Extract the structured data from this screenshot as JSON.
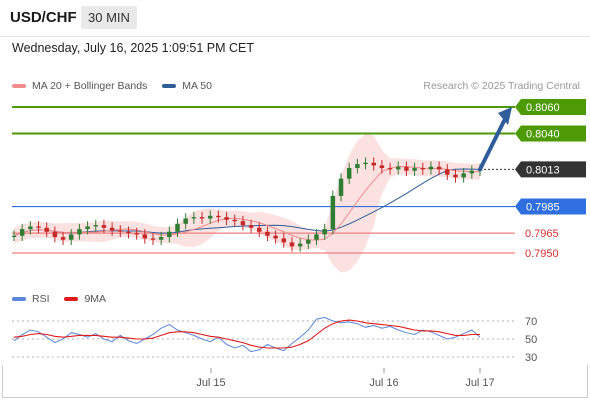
{
  "header": {
    "symbol": "USD/CHF",
    "timeframe": "30 MIN"
  },
  "timestamp": "Wednesday, July 16, 2025 1:09:51 PM CET",
  "legend": [
    {
      "label": "MA 20 + Bollinger Bands",
      "color": "#f28b8b"
    },
    {
      "label": "MA 50",
      "color": "#2f5d9a"
    }
  ],
  "credit": "Research © 2025 Trading Central",
  "rsi_legend": [
    {
      "label": "RSI",
      "color": "#5b87d9"
    },
    {
      "label": "9MA",
      "color": "#e01b1b"
    }
  ],
  "colors": {
    "resistance": "#4e9a06",
    "pivot": "#2f6fe0",
    "support": "#f08080",
    "current": "#333333",
    "candle_up": "#2e7d32",
    "candle_down": "#c62828",
    "bollinger": "#fbd7d7"
  },
  "chart_data": {
    "type": "candlestick",
    "x_ticks": [
      "Jul 15",
      "Jul 16",
      "Jul 17"
    ],
    "levels": [
      {
        "value": 0.806,
        "label": "0.8060",
        "kind": "resistance"
      },
      {
        "value": 0.804,
        "label": "0.8040",
        "kind": "resistance"
      },
      {
        "value": 0.8013,
        "label": "0.8013",
        "kind": "current"
      },
      {
        "value": 0.7985,
        "label": "0.7985",
        "kind": "pivot"
      },
      {
        "value": 0.7965,
        "label": "0.7965",
        "kind": "support"
      },
      {
        "value": 0.795,
        "label": "0.7950",
        "kind": "support"
      }
    ],
    "price_path": [
      0.7963,
      0.7968,
      0.797,
      0.7969,
      0.7966,
      0.7962,
      0.796,
      0.7964,
      0.7968,
      0.797,
      0.7971,
      0.7969,
      0.7967,
      0.7966,
      0.7965,
      0.7964,
      0.7961,
      0.796,
      0.7962,
      0.7966,
      0.7972,
      0.7976,
      0.7977,
      0.7976,
      0.7978,
      0.7977,
      0.7975,
      0.7974,
      0.7971,
      0.7969,
      0.7966,
      0.7963,
      0.7961,
      0.7958,
      0.7955,
      0.7957,
      0.796,
      0.7964,
      0.7968,
      0.7993,
      0.8006,
      0.8014,
      0.8017,
      0.8018,
      0.8016,
      0.8014,
      0.8013,
      0.8015,
      0.8012,
      0.8014,
      0.8013,
      0.8015,
      0.8013,
      0.8009,
      0.8007,
      0.801,
      0.8012,
      0.8013
    ],
    "forecast_target": 0.806,
    "rsi": {
      "y_ticks": [
        70,
        50,
        30
      ],
      "rsi_values": [
        48,
        55,
        60,
        58,
        52,
        46,
        50,
        57,
        55,
        52,
        56,
        50,
        47,
        54,
        48,
        45,
        50,
        55,
        62,
        66,
        60,
        57,
        54,
        50,
        47,
        52,
        44,
        40,
        43,
        36,
        38,
        44,
        40,
        37,
        45,
        52,
        60,
        72,
        74,
        70,
        68,
        69,
        67,
        63,
        65,
        62,
        64,
        60,
        57,
        55,
        60,
        58,
        54,
        50,
        52,
        56,
        60,
        52
      ],
      "ma_values": [
        52,
        53,
        55,
        56,
        55,
        53,
        52,
        53,
        54,
        54,
        54,
        53,
        52,
        52,
        51,
        50,
        50,
        51,
        54,
        57,
        58,
        58,
        57,
        55,
        53,
        52,
        50,
        48,
        46,
        43,
        41,
        40,
        40,
        40,
        41,
        44,
        48,
        55,
        62,
        67,
        70,
        71,
        70,
        68,
        67,
        66,
        65,
        64,
        62,
        60,
        59,
        59,
        58,
        56,
        54,
        54,
        55,
        55
      ]
    }
  }
}
